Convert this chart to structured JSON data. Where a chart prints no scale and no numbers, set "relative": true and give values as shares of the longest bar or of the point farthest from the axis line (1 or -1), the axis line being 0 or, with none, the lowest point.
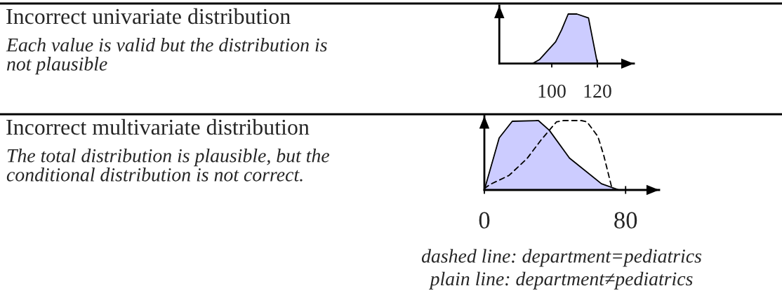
{
  "chart_data": [
    {
      "type": "other",
      "title": "Incorrect univariate distribution",
      "subtitle": "Each value is valid but the distribution is not plausible"
    },
    {
      "type": "area",
      "relative": true,
      "xlim": [
        77,
        136
      ],
      "xticks": [
        100,
        120
      ],
      "series": [
        {
          "color": "#ccccff",
          "x": [
            91.5,
            94.6,
            101.7,
            104.3,
            107.2,
            111.0,
            116.1,
            119.9,
            120.0
          ],
          "values": [
            0,
            0.08,
            0.44,
            0.68,
            1.0,
            1.0,
            0.92,
            0.03,
            0
          ]
        }
      ]
    },
    {
      "type": "other",
      "title": "Incorrect multivariate distribution",
      "subtitle": "The total distribution is plausible, but the conditional distribution is not correct."
    },
    {
      "type": "area",
      "relative": true,
      "xlim": [
        0,
        99
      ],
      "xticks": [
        0,
        80
      ],
      "series": [
        {
          "color": "#ccccff",
          "x": [
            0,
            8.4,
            15.8,
            30.6,
            36.8,
            48.2,
            66.3,
            76.3
          ],
          "values": [
            0,
            0.75,
            0.99,
            1.0,
            0.86,
            0.46,
            0.09,
            0
          ]
        },
        {
          "type": "line",
          "line_style": "dashed",
          "color": "#000000",
          "x": [
            0,
            3.3,
            14,
            24.1,
            32.1,
            40.8,
            45,
            55,
            58.2,
            64.3,
            67.6,
            72.3,
            73.2
          ],
          "values": [
            0.02,
            0.08,
            0.21,
            0.45,
            0.72,
            0.98,
            1.0,
            1.0,
            0.98,
            0.77,
            0.5,
            0.02,
            0
          ]
        }
      ],
      "annotations": [
        "dashed line: department=pediatrics",
        "plain line: department≠pediatrics"
      ]
    }
  ]
}
